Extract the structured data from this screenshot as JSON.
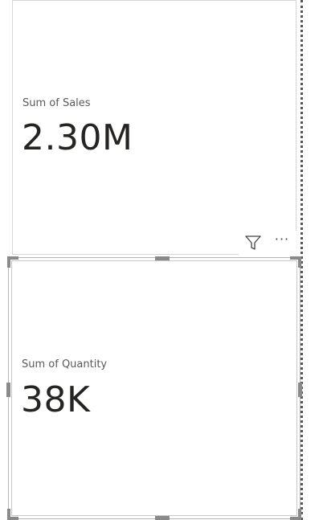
{
  "cards": [
    {
      "label": "Sum of Sales",
      "value": "2.30M"
    },
    {
      "label": "Sum of Quantity",
      "value": "38K"
    }
  ],
  "visual_header": {
    "filter_icon": "filter-icon",
    "more_icon": "more-options-icon",
    "more_label": "···"
  },
  "colors": {
    "label": "#595959",
    "value": "#252423",
    "border": "#d6d6d6",
    "handle": "#8a8a8a"
  }
}
